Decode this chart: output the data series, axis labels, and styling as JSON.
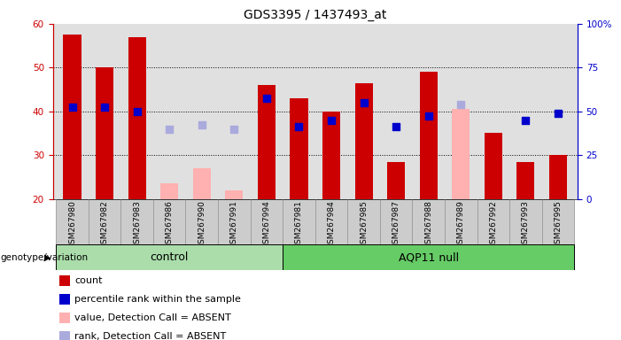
{
  "title": "GDS3395 / 1437493_at",
  "samples": [
    "GSM267980",
    "GSM267982",
    "GSM267983",
    "GSM267986",
    "GSM267990",
    "GSM267991",
    "GSM267994",
    "GSM267981",
    "GSM267984",
    "GSM267985",
    "GSM267987",
    "GSM267988",
    "GSM267989",
    "GSM267992",
    "GSM267993",
    "GSM267995"
  ],
  "control_count": 7,
  "aqp11_count": 9,
  "red_bars": [
    57.5,
    50.0,
    57.0,
    null,
    null,
    null,
    46.0,
    43.0,
    40.0,
    46.5,
    28.5,
    49.0,
    null,
    35.0,
    28.5,
    30.0
  ],
  "blue_dots": [
    41.0,
    41.0,
    40.0,
    null,
    null,
    null,
    43.0,
    36.5,
    38.0,
    42.0,
    36.5,
    39.0,
    null,
    null,
    38.0,
    39.5
  ],
  "pink_bars": [
    null,
    null,
    null,
    23.5,
    27.0,
    22.0,
    null,
    null,
    null,
    null,
    null,
    null,
    40.5,
    null,
    null,
    null
  ],
  "lightblue_dots": [
    null,
    null,
    null,
    36.0,
    37.0,
    36.0,
    null,
    null,
    null,
    null,
    null,
    null,
    41.5,
    null,
    null,
    null
  ],
  "ylim": [
    20,
    60
  ],
  "y_left_ticks": [
    20,
    30,
    40,
    50,
    60
  ],
  "y_right_ticks": [
    0,
    25,
    50,
    75,
    100
  ],
  "grid_yticks": [
    30,
    40,
    50
  ],
  "legend_items": [
    {
      "color": "#cc0000",
      "label": "count"
    },
    {
      "color": "#0000cc",
      "label": "percentile rank within the sample"
    },
    {
      "color": "#ffb0b0",
      "label": "value, Detection Call = ABSENT"
    },
    {
      "color": "#aaaadd",
      "label": "rank, Detection Call = ABSENT"
    }
  ],
  "bar_width": 0.55,
  "dot_size": 30,
  "background_color": "#ffffff",
  "plot_bg_color": "#e0e0e0",
  "xtick_bg_color": "#cccccc",
  "genotype_label": "genotype/variation",
  "control_group_color": "#aaddaa",
  "aqp11_group_color": "#66cc66",
  "group_border_color": "#000000"
}
